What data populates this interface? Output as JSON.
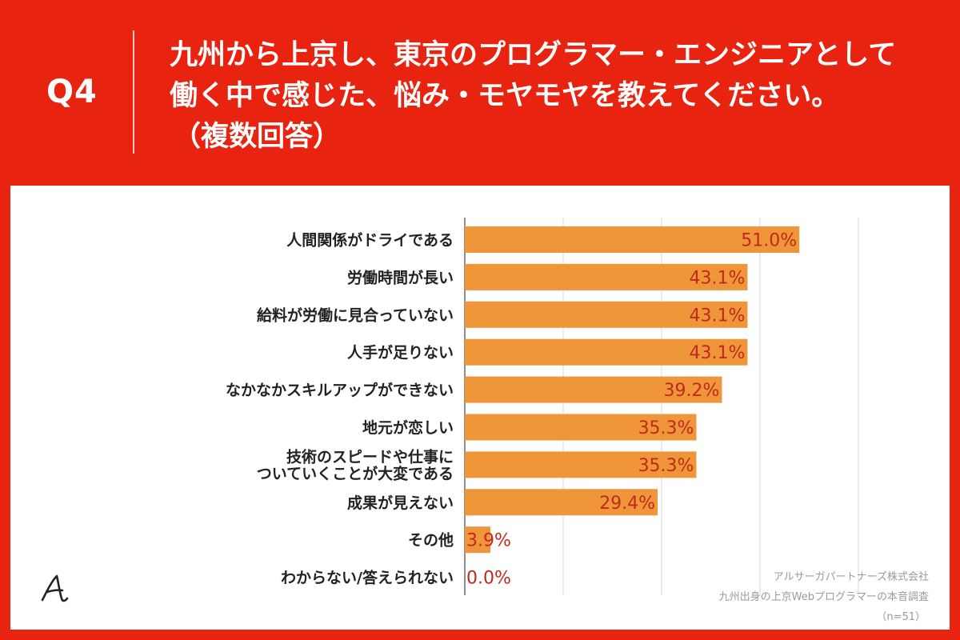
{
  "header": {
    "q_number": "Q4",
    "title_line1": "九州から上京し、東京のプログラマー・エンジニアとして",
    "title_line2": "働く中で感じた、悩み・モヤモヤを教えてください。",
    "title_line3": "（複数回答）"
  },
  "colors": {
    "background": "#E8230F",
    "bar": "#F0963A",
    "value_text": "#C0291B",
    "grid": "#D8D8D8"
  },
  "chart_data": {
    "type": "bar",
    "orientation": "horizontal",
    "title": "九州から上京し、東京のプログラマー・エンジニアとして働く中で感じた、悩み・モヤモヤを教えてください。（複数回答）",
    "xlabel": "",
    "ylabel": "",
    "categories": [
      [
        "人間関係がドライである"
      ],
      [
        "労働時間が長い"
      ],
      [
        "給料が労働に見合っていない"
      ],
      [
        "人手が足りない"
      ],
      [
        "なかなかスキルアップができない"
      ],
      [
        "地元が恋しい"
      ],
      [
        "技術のスピードや仕事に",
        "ついていくことが大変である"
      ],
      [
        "成果が見えない"
      ],
      [
        "その他"
      ],
      [
        "わからない/答えられない"
      ]
    ],
    "values": [
      51.0,
      43.1,
      43.1,
      43.1,
      39.2,
      35.3,
      35.3,
      29.4,
      3.9,
      0.0
    ],
    "value_labels": [
      "51.0%",
      "43.1%",
      "43.1%",
      "43.1%",
      "39.2%",
      "35.3%",
      "35.3%",
      "29.4%",
      "3.9%",
      "0.0%"
    ],
    "xlim": [
      0,
      75
    ],
    "grid": true
  },
  "credits": {
    "company": "アルサーガパートナーズ株式会社",
    "survey": "九州出身の上京Webプログラマーの本音調査",
    "sample": "（n=51）"
  },
  "logo": {
    "icon": "arsaga-logo-icon"
  }
}
